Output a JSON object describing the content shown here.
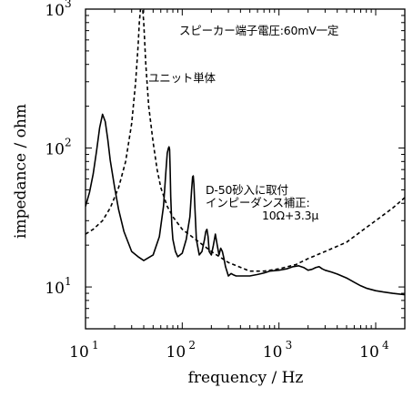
{
  "chart_data": {
    "type": "line",
    "xlabel": "frequency / Hz",
    "ylabel": "impedance / ohm",
    "x_scale": "log",
    "y_scale": "log",
    "xlim": [
      10,
      20000
    ],
    "ylim": [
      5,
      1000
    ],
    "x_ticks": [
      {
        "value": 10,
        "base": "10",
        "exp": "1"
      },
      {
        "value": 100,
        "base": "10",
        "exp": "2"
      },
      {
        "value": 1000,
        "base": "10",
        "exp": "3"
      },
      {
        "value": 10000,
        "base": "10",
        "exp": "4"
      }
    ],
    "y_ticks": [
      {
        "value": 10,
        "base": "10",
        "exp": "1"
      },
      {
        "value": 100,
        "base": "10",
        "exp": "2"
      },
      {
        "value": 1000,
        "base": "10",
        "exp": "3"
      }
    ],
    "grid": false,
    "annotations": [
      {
        "id": "condition",
        "lines": [
          "スピーカー端子電圧:60mV一定"
        ]
      },
      {
        "id": "unit",
        "lines": [
          "ユニット単体"
        ]
      },
      {
        "id": "enclosure",
        "lines": [
          "D-50砂入に取付",
          "インピーダンス補正:",
          "10Ω+3.3μ"
        ]
      }
    ],
    "series": [
      {
        "line_style": "dashed",
        "x": [
          10,
          12,
          15,
          18,
          22,
          26,
          30,
          33,
          35,
          36,
          37,
          38,
          39,
          40,
          42,
          45,
          50,
          55,
          60,
          70,
          80,
          100,
          150,
          200,
          300,
          500,
          700,
          1000,
          1500,
          2000,
          3000,
          5000,
          7000,
          10000,
          15000,
          20000
        ],
        "y": [
          24,
          26,
          30,
          37,
          52,
          80,
          150,
          300,
          550,
          800,
          1000,
          1000,
          1000,
          800,
          400,
          200,
          110,
          70,
          52,
          38,
          32,
          26,
          21,
          18,
          15,
          13,
          13,
          13.5,
          14.5,
          16,
          18,
          21,
          25,
          30,
          37,
          44
        ]
      },
      {
        "line_style": "solid",
        "x": [
          10,
          11,
          12,
          13,
          14,
          15,
          16,
          17,
          18,
          20,
          22,
          25,
          30,
          35,
          40,
          50,
          58,
          64,
          68,
          70,
          72,
          73,
          74,
          75,
          76,
          78,
          80,
          85,
          90,
          100,
          110,
          120,
          125,
          128,
          130,
          132,
          135,
          140,
          150,
          160,
          170,
          175,
          180,
          185,
          190,
          200,
          210,
          220,
          230,
          240,
          250,
          260,
          270,
          280,
          300,
          320,
          340,
          360,
          400,
          500,
          600,
          700,
          800,
          1000,
          1200,
          1400,
          1600,
          1800,
          2000,
          2200,
          2400,
          2600,
          2800,
          3000,
          3500,
          4000,
          5000,
          6000,
          7000,
          8000,
          10000,
          12000,
          15000,
          20000
        ],
        "y": [
          38,
          48,
          65,
          95,
          140,
          175,
          155,
          115,
          82,
          52,
          36,
          25,
          18,
          16.5,
          15.5,
          17,
          23,
          38,
          70,
          92,
          100,
          102,
          98,
          70,
          45,
          28,
          22,
          18,
          16.5,
          17.5,
          22,
          32,
          50,
          62,
          63,
          55,
          38,
          22,
          17,
          18,
          22,
          25,
          26,
          23,
          18,
          17,
          20,
          24,
          20,
          17,
          19,
          18,
          16,
          14,
          12,
          12.5,
          12.2,
          12,
          12,
          12,
          12.3,
          12.6,
          13,
          13.2,
          13.5,
          14,
          14.2,
          13.8,
          13.2,
          13.4,
          13.8,
          14,
          13.5,
          13.2,
          12.8,
          12.4,
          11.6,
          10.8,
          10.2,
          9.8,
          9.4,
          9.2,
          9.0,
          8.8
        ]
      }
    ]
  }
}
